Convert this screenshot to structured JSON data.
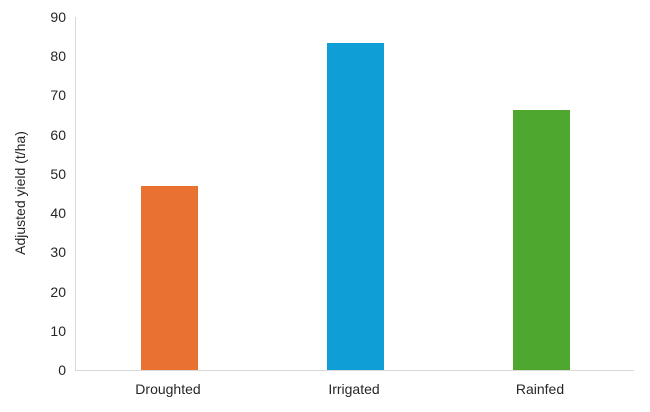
{
  "chart_data": {
    "type": "bar",
    "title": "",
    "categories": [
      "Droughted",
      "Irrigated",
      "Rainfed"
    ],
    "values": [
      47,
      83.3,
      66.3
    ],
    "bar_colors": [
      "#E97132",
      "#0F9ED5",
      "#4EA72E"
    ],
    "xlabel": "",
    "ylabel": "Adjusted yield (t/ha)",
    "ylim": [
      0,
      90
    ],
    "yticks": [
      0,
      10,
      20,
      30,
      40,
      50,
      60,
      70,
      80,
      90
    ],
    "grid": false,
    "legend": false,
    "axis_line_color": "#D9D9D9",
    "tick_label_color": "#262626",
    "background_color": "#FFFFFF"
  }
}
